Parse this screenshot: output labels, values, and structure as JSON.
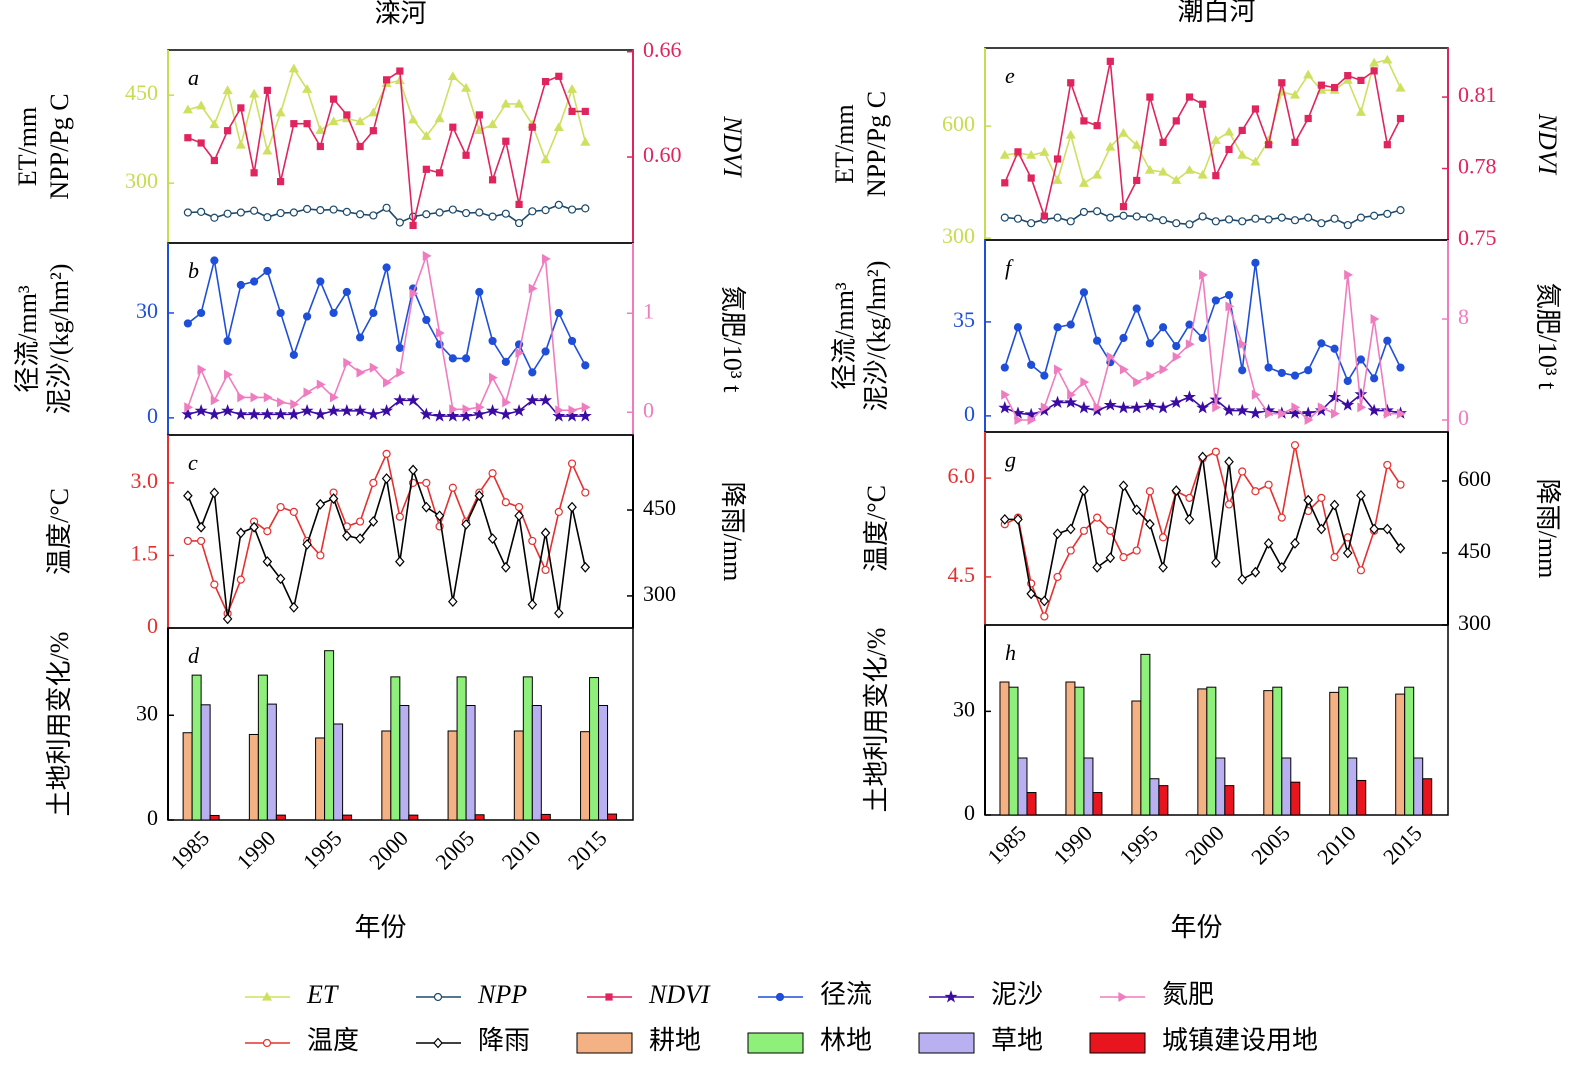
{
  "chart_data": [
    {
      "type": "line",
      "title": "滦河",
      "label": "a",
      "ylabel": [
        "ET/mm",
        "NPP/Pg C"
      ],
      "y2label": [
        "NDVI"
      ],
      "ycolor": "#c8dc50",
      "y2color": "#e0245e",
      "x": [
        1985,
        1986,
        1987,
        1988,
        1989,
        1990,
        1991,
        1992,
        1993,
        1994,
        1995,
        1996,
        1997,
        1998,
        1999,
        2000,
        2001,
        2002,
        2003,
        2004,
        2005,
        2006,
        2007,
        2008,
        2009,
        2010,
        2011,
        2012,
        2013,
        2014,
        2015
      ],
      "xlim": [
        1983.5,
        2018.6
      ],
      "ylim": [
        198,
        527
      ],
      "yticks": [
        300,
        450
      ],
      "y2lim": [
        0.551,
        0.661
      ],
      "y2ticks": [
        {
          "value": 0.6,
          "label": "0.60"
        },
        0.66
      ],
      "series": [
        {
          "name": "ET",
          "color": "#cfe060",
          "marker": "triangle",
          "values": [
            425,
            432,
            400,
            458,
            365,
            452,
            355,
            420,
            495,
            460,
            390,
            405,
            410,
            405,
            420,
            470,
            475,
            408,
            380,
            410,
            482,
            462,
            390,
            400,
            435,
            435,
            400,
            340,
            395,
            460,
            370
          ]
        },
        {
          "name": "NPP",
          "color": "#1d4a6b",
          "marker": "circle-open",
          "values": [
            250,
            251,
            241,
            248,
            250,
            253,
            242,
            249,
            250,
            256,
            254,
            255,
            251,
            247,
            245,
            258,
            233,
            243,
            247,
            250,
            255,
            249,
            250,
            243,
            248,
            232,
            252,
            254,
            263,
            255,
            257
          ]
        },
        {
          "name": "NDVI",
          "color": "#e0245e",
          "marker": "square",
          "axis": "y2",
          "values": [
            0.611,
            0.608,
            0.598,
            0.615,
            0.628,
            0.591,
            0.638,
            0.586,
            0.619,
            0.619,
            0.606,
            0.633,
            0.624,
            0.606,
            0.615,
            0.644,
            0.649,
            0.561,
            0.593,
            0.591,
            0.617,
            0.601,
            0.624,
            0.587,
            0.609,
            0.573,
            0.617,
            0.643,
            0.646,
            0.626,
            0.626
          ]
        }
      ]
    },
    {
      "type": "line",
      "label": "b",
      "ylabel": [
        "径流/mm³",
        "泥沙/(kg/hm²)"
      ],
      "y2label": [
        "氮肥/10³ t"
      ],
      "ycolor": "#1f4fd8",
      "y2color": "#f07cc0",
      "x": [
        1985,
        1986,
        1987,
        1988,
        1989,
        1990,
        1991,
        1992,
        1993,
        1994,
        1995,
        1996,
        1997,
        1998,
        1999,
        2000,
        2001,
        2002,
        2003,
        2004,
        2005,
        2006,
        2007,
        2008,
        2009,
        2010,
        2011,
        2012,
        2013,
        2014,
        2015
      ],
      "xlim": [
        1983.5,
        2018.6
      ],
      "ylim": [
        -4.9,
        50
      ],
      "yticks": [
        0,
        30
      ],
      "y2lim": [
        -0.23,
        1.71
      ],
      "y2ticks": [
        0,
        1
      ],
      "series": [
        {
          "name": "径流",
          "color": "#1f4fd8",
          "marker": "circle",
          "values": [
            27,
            30,
            45,
            22,
            38,
            39,
            42,
            30,
            18,
            29,
            39,
            30,
            36,
            23,
            30,
            43,
            20,
            37,
            28,
            21,
            17,
            17,
            36,
            22,
            16,
            21,
            13,
            19,
            30,
            22,
            15
          ]
        },
        {
          "name": "泥沙",
          "color": "#3a0ca3",
          "marker": "star",
          "values": [
            1,
            2,
            1,
            2,
            1,
            1,
            1,
            1,
            1,
            2,
            1,
            2,
            2,
            2,
            1,
            2,
            5,
            5,
            1,
            0.5,
            0.5,
            0.5,
            1,
            2,
            1,
            2,
            5,
            5,
            0.5,
            0.5,
            0.5
          ]
        },
        {
          "name": "氮肥",
          "color": "#f07cc0",
          "marker": "triangle-right",
          "axis": "y2",
          "values": [
            0.05,
            0.43,
            0.12,
            0.38,
            0.15,
            0.15,
            0.15,
            0.1,
            0.08,
            0.2,
            0.28,
            0.15,
            0.5,
            0.4,
            0.45,
            0.3,
            0.4,
            1.2,
            1.58,
            0.8,
            0.03,
            0.03,
            0.05,
            0.35,
            0.1,
            0.6,
            1.25,
            1.55,
            0.02,
            0.02,
            0.05
          ]
        }
      ]
    },
    {
      "type": "line",
      "label": "c",
      "ylabel": [
        "温度/°C"
      ],
      "y2label": [
        "降雨/mm"
      ],
      "ycolor": "#e53030",
      "y2color": "#000000",
      "x": [
        1985,
        1986,
        1987,
        1988,
        1989,
        1990,
        1991,
        1992,
        1993,
        1994,
        1995,
        1996,
        1997,
        1998,
        1999,
        2000,
        2001,
        2002,
        2003,
        2004,
        2005,
        2006,
        2007,
        2008,
        2009,
        2010,
        2011,
        2012,
        2013,
        2014,
        2015
      ],
      "xlim": [
        1983.5,
        2018.6
      ],
      "ylim": [
        0,
        3.99
      ],
      "yticks": [
        0,
        1.5,
        {
          "value": 3,
          "label": "3.0"
        }
      ],
      "y2lim": [
        244,
        581
      ],
      "y2ticks": [
        300,
        450
      ],
      "series": [
        {
          "name": "温度",
          "color": "#e53030",
          "marker": "circle-open",
          "values": [
            1.8,
            1.8,
            0.9,
            0.3,
            1.0,
            2.2,
            2.0,
            2.5,
            2.4,
            1.8,
            1.5,
            2.8,
            2.1,
            2.2,
            3.0,
            3.6,
            2.3,
            3.0,
            3.0,
            2.1,
            2.9,
            2.2,
            2.8,
            3.2,
            2.6,
            2.5,
            1.8,
            1.2,
            2.4,
            3.4,
            2.8
          ]
        },
        {
          "name": "降雨",
          "color": "#000000",
          "marker": "diamond-open",
          "axis": "y2",
          "values": [
            475,
            420,
            480,
            260,
            410,
            420,
            360,
            330,
            280,
            390,
            460,
            470,
            405,
            400,
            430,
            505,
            360,
            520,
            455,
            440,
            290,
            425,
            475,
            400,
            350,
            440,
            285,
            410,
            270,
            455,
            350
          ]
        }
      ]
    },
    {
      "type": "bar",
      "label": "d",
      "ylabel": [
        "土地利用变化/%"
      ],
      "xlabel": "年份",
      "ycolor": "#000000",
      "x": [
        1985,
        1990,
        1995,
        2000,
        2005,
        2010,
        2015
      ],
      "xlim": [
        1982.5,
        2017.6
      ],
      "xticks": [
        1985,
        1990,
        1995,
        2000,
        2005,
        2010,
        2015
      ],
      "ylim": [
        0,
        55
      ],
      "yticks": [
        0,
        30
      ],
      "series": [
        {
          "name": "耕地",
          "color": "#f4b183",
          "values": [
            25,
            24.5,
            23.5,
            25.5,
            25.5,
            25.5,
            25.3
          ]
        },
        {
          "name": "林地",
          "color": "#8ef07a",
          "values": [
            41.5,
            41.5,
            48.5,
            41,
            41,
            41,
            40.8
          ]
        },
        {
          "name": "草地",
          "color": "#b8b0f0",
          "values": [
            33,
            33.2,
            27.5,
            32.8,
            32.8,
            32.8,
            32.8
          ]
        },
        {
          "name": "城镇建设用地",
          "color": "#e8141e",
          "values": [
            1.3,
            1.4,
            1.4,
            1.4,
            1.5,
            1.6,
            1.7
          ]
        }
      ]
    },
    {
      "type": "line",
      "title": "潮白河",
      "label": "e",
      "ylabel": [
        "ET/mm",
        "NPP/Pg C"
      ],
      "y2label": [
        "NDVI"
      ],
      "ycolor": "#c8dc50",
      "y2color": "#e0245e",
      "x": [
        1985,
        1986,
        1987,
        1988,
        1989,
        1990,
        1991,
        1992,
        1993,
        1994,
        1995,
        1996,
        1997,
        1998,
        1999,
        2000,
        2001,
        2002,
        2003,
        2004,
        2005,
        2006,
        2007,
        2008,
        2009,
        2010,
        2011,
        2012,
        2013,
        2014,
        2015
      ],
      "xlim": [
        1983.5,
        2018.6
      ],
      "ylim": [
        295,
        809
      ],
      "yticks": [
        300,
        600
      ],
      "y2lim": [
        0.75,
        0.8306
      ],
      "y2ticks": [
        0.75,
        0.78,
        0.81
      ],
      "series": [
        {
          "color": "#cfe060",
          "marker": "triangle",
          "values": [
            522,
            528,
            522,
            530,
            455,
            576,
            447,
            469,
            544,
            581,
            549,
            482,
            477,
            455,
            482,
            469,
            562,
            584,
            522,
            504,
            562,
            691,
            683,
            737,
            696,
            696,
            723,
            637,
            769,
            777,
            702
          ]
        },
        {
          "color": "#1d4a6b",
          "marker": "circle-open",
          "values": [
            355,
            352,
            340,
            350,
            355,
            345,
            370,
            372,
            355,
            360,
            358,
            355,
            348,
            340,
            337,
            358,
            345,
            350,
            345,
            352,
            350,
            355,
            348,
            355,
            340,
            352,
            335,
            355,
            360,
            365,
            375
          ]
        },
        {
          "color": "#e0245e",
          "marker": "square",
          "axis": "y2",
          "values": [
            0.774,
            0.787,
            0.776,
            0.76,
            0.784,
            0.816,
            0.8,
            0.798,
            0.825,
            0.764,
            0.775,
            0.81,
            0.791,
            0.8,
            0.81,
            0.807,
            0.777,
            0.788,
            0.796,
            0.805,
            0.79,
            0.816,
            0.791,
            0.801,
            0.815,
            0.814,
            0.819,
            0.817,
            0.821,
            0.79,
            0.801
          ]
        }
      ]
    },
    {
      "type": "line",
      "label": "f",
      "ylabel": [
        "径流/mm³",
        "泥沙/(kg/hm²)"
      ],
      "y2label": [
        "氮肥/10³ t"
      ],
      "ycolor": "#1f4fd8",
      "y2color": "#f07cc0",
      "x": [
        1985,
        1986,
        1987,
        1988,
        1989,
        1990,
        1991,
        1992,
        1993,
        1994,
        1995,
        1996,
        1997,
        1998,
        1999,
        2000,
        2001,
        2002,
        2003,
        2004,
        2005,
        2006,
        2007,
        2008,
        2009,
        2010,
        2011,
        2012,
        2013,
        2014,
        2015
      ],
      "xlim": [
        1983.5,
        2018.6
      ],
      "ylim": [
        -6,
        65.5
      ],
      "yticks": [
        0,
        35
      ],
      "y2lim": [
        -0.95,
        14.26
      ],
      "y2ticks": [
        0,
        8
      ],
      "series": [
        {
          "color": "#1f4fd8",
          "marker": "circle",
          "values": [
            18,
            33,
            19,
            15,
            33,
            34,
            46,
            28,
            20,
            29,
            40,
            27,
            33,
            26,
            34,
            29,
            43,
            45,
            17,
            57,
            18,
            16,
            15,
            17,
            27,
            25,
            13,
            21,
            14,
            28,
            18
          ]
        },
        {
          "color": "#3a0ca3",
          "marker": "star",
          "values": [
            3,
            1,
            0.5,
            2,
            5,
            5,
            3,
            2,
            4,
            3,
            3,
            4,
            3,
            5,
            7,
            3,
            6,
            2,
            2,
            1,
            2,
            1,
            1,
            1,
            2,
            7,
            4,
            8,
            2,
            2,
            1
          ]
        },
        {
          "color": "#f07cc0",
          "marker": "triangle-right",
          "axis": "y2",
          "values": [
            2,
            0,
            0,
            1,
            4,
            2,
            3,
            1,
            5,
            4,
            3,
            3.5,
            4,
            5,
            6,
            11.5,
            1,
            9,
            6,
            2,
            0.5,
            0.5,
            1,
            0,
            1,
            0.5,
            11.5,
            1,
            8,
            0.5,
            0.5
          ]
        }
      ]
    },
    {
      "type": "line",
      "label": "g",
      "ylabel": [
        "温度/°C"
      ],
      "y2label": [
        "降雨/mm"
      ],
      "ycolor": "#e53030",
      "y2color": "#000000",
      "x": [
        1985,
        1986,
        1987,
        1988,
        1989,
        1990,
        1991,
        1992,
        1993,
        1994,
        1995,
        1996,
        1997,
        1998,
        1999,
        2000,
        2001,
        2002,
        2003,
        2004,
        2005,
        2006,
        2007,
        2008,
        2009,
        2010,
        2011,
        2012,
        2013,
        2014,
        2015
      ],
      "xlim": [
        1983.5,
        2018.6
      ],
      "ylim": [
        3.77,
        6.7
      ],
      "yticks": [
        4.5,
        {
          "value": 6,
          "label": "6.0"
        }
      ],
      "y2lim": [
        300,
        702
      ],
      "y2ticks": [
        300,
        450,
        600
      ],
      "series": [
        {
          "color": "#e53030",
          "marker": "circle-open",
          "values": [
            5.3,
            5.4,
            4.4,
            3.9,
            4.5,
            4.9,
            5.2,
            5.4,
            5.2,
            4.8,
            4.9,
            5.8,
            5.1,
            5.8,
            5.7,
            6.3,
            6.4,
            5.6,
            6.1,
            5.8,
            5.9,
            5.4,
            6.5,
            5.5,
            5.7,
            4.8,
            5.1,
            4.6,
            5.2,
            6.2,
            5.9
          ]
        },
        {
          "color": "#000000",
          "marker": "diamond-open",
          "axis": "y2",
          "values": [
            520,
            520,
            365,
            350,
            490,
            500,
            580,
            420,
            440,
            590,
            540,
            510,
            420,
            580,
            520,
            650,
            430,
            640,
            395,
            410,
            470,
            420,
            470,
            560,
            500,
            550,
            450,
            570,
            500,
            500,
            460
          ]
        }
      ]
    },
    {
      "type": "bar",
      "label": "h",
      "ylabel": [
        "土地利用变化/%"
      ],
      "xlabel": "年份",
      "ycolor": "#000000",
      "x": [
        1985,
        1990,
        1995,
        2000,
        2005,
        2010,
        2015
      ],
      "xlim": [
        1982.5,
        2017.6
      ],
      "xticks": [
        1985,
        1990,
        1995,
        2000,
        2005,
        2010,
        2015
      ],
      "ylim": [
        0,
        55
      ],
      "yticks": [
        0,
        30
      ],
      "series": [
        {
          "color": "#f4b183",
          "values": [
            38.5,
            38.5,
            33,
            36.5,
            36,
            35.5,
            35
          ]
        },
        {
          "color": "#8ef07a",
          "values": [
            37,
            37,
            46.5,
            37,
            37,
            37,
            37
          ]
        },
        {
          "color": "#b8b0f0",
          "values": [
            16.5,
            16.5,
            10.5,
            16.5,
            16.5,
            16.5,
            16.5
          ]
        },
        {
          "color": "#e8141e",
          "values": [
            6.5,
            6.5,
            8.5,
            8.5,
            9.5,
            10,
            10.5
          ]
        }
      ]
    }
  ]
}
